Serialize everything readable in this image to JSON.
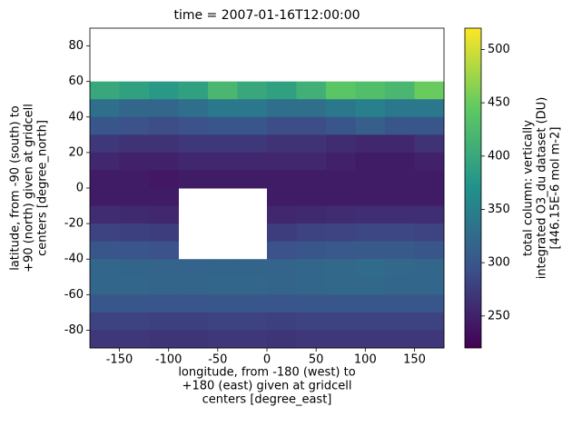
{
  "chart_data": {
    "type": "heatmap",
    "title": "time = 2007-01-16T12:00:00",
    "xlabel": [
      "longitude, from -180 (west) to",
      "+180 (east) given at gridcell",
      "centers [degree_east]"
    ],
    "ylabel": [
      "latitude, from -90 (south) to",
      "+90 (north) given at gridcell",
      "centers [degree_north]"
    ],
    "colorbar_label": [
      "total column: vertically",
      "integrated O3_du dataset (DU)",
      "[446.15E-6 mol m-2]"
    ],
    "colormap": "viridis",
    "x": [
      -165,
      -135,
      -105,
      -75,
      -45,
      -15,
      15,
      45,
      75,
      105,
      135,
      165
    ],
    "y": [
      55,
      45,
      35,
      25,
      15,
      5,
      -5,
      -15,
      -25,
      -35,
      -45,
      -55,
      -65,
      -75,
      -85
    ],
    "z": [
      [
        400,
        390,
        380,
        390,
        420,
        400,
        390,
        410,
        440,
        430,
        420,
        450
      ],
      [
        330,
        320,
        320,
        330,
        340,
        340,
        330,
        330,
        340,
        350,
        340,
        340
      ],
      [
        300,
        295,
        290,
        295,
        300,
        300,
        290,
        290,
        300,
        310,
        300,
        300
      ],
      [
        270,
        265,
        265,
        270,
        270,
        270,
        265,
        265,
        260,
        255,
        255,
        265
      ],
      [
        255,
        250,
        250,
        255,
        255,
        255,
        255,
        255,
        250,
        245,
        245,
        250
      ],
      [
        245,
        245,
        240,
        245,
        245,
        245,
        245,
        245,
        245,
        245,
        245,
        245
      ],
      [
        245,
        245,
        245,
        null,
        null,
        null,
        245,
        245,
        245,
        245,
        245,
        245
      ],
      [
        260,
        258,
        255,
        null,
        null,
        null,
        255,
        258,
        260,
        262,
        262,
        262
      ],
      [
        280,
        278,
        275,
        null,
        null,
        null,
        275,
        280,
        282,
        285,
        285,
        282
      ],
      [
        300,
        298,
        295,
        null,
        null,
        null,
        295,
        300,
        302,
        305,
        305,
        300
      ],
      [
        320,
        318,
        315,
        315,
        318,
        318,
        315,
        320,
        322,
        325,
        322,
        320
      ],
      [
        320,
        320,
        318,
        318,
        320,
        320,
        318,
        320,
        322,
        322,
        320,
        320
      ],
      [
        300,
        300,
        298,
        298,
        300,
        300,
        298,
        300,
        300,
        300,
        300,
        300
      ],
      [
        280,
        280,
        278,
        278,
        280,
        280,
        278,
        280,
        280,
        280,
        280,
        280
      ],
      [
        270,
        270,
        268,
        268,
        270,
        270,
        268,
        270,
        270,
        270,
        270,
        270
      ]
    ],
    "xlim": [
      -180,
      180
    ],
    "ylim": [
      -90,
      90
    ],
    "xticks": [
      -150,
      -100,
      -50,
      0,
      50,
      100,
      150
    ],
    "yticks": [
      -80,
      -60,
      -40,
      -20,
      0,
      20,
      40,
      60,
      80
    ],
    "clim": [
      220,
      520
    ],
    "cticks": [
      250,
      300,
      350,
      400,
      450,
      500
    ]
  }
}
